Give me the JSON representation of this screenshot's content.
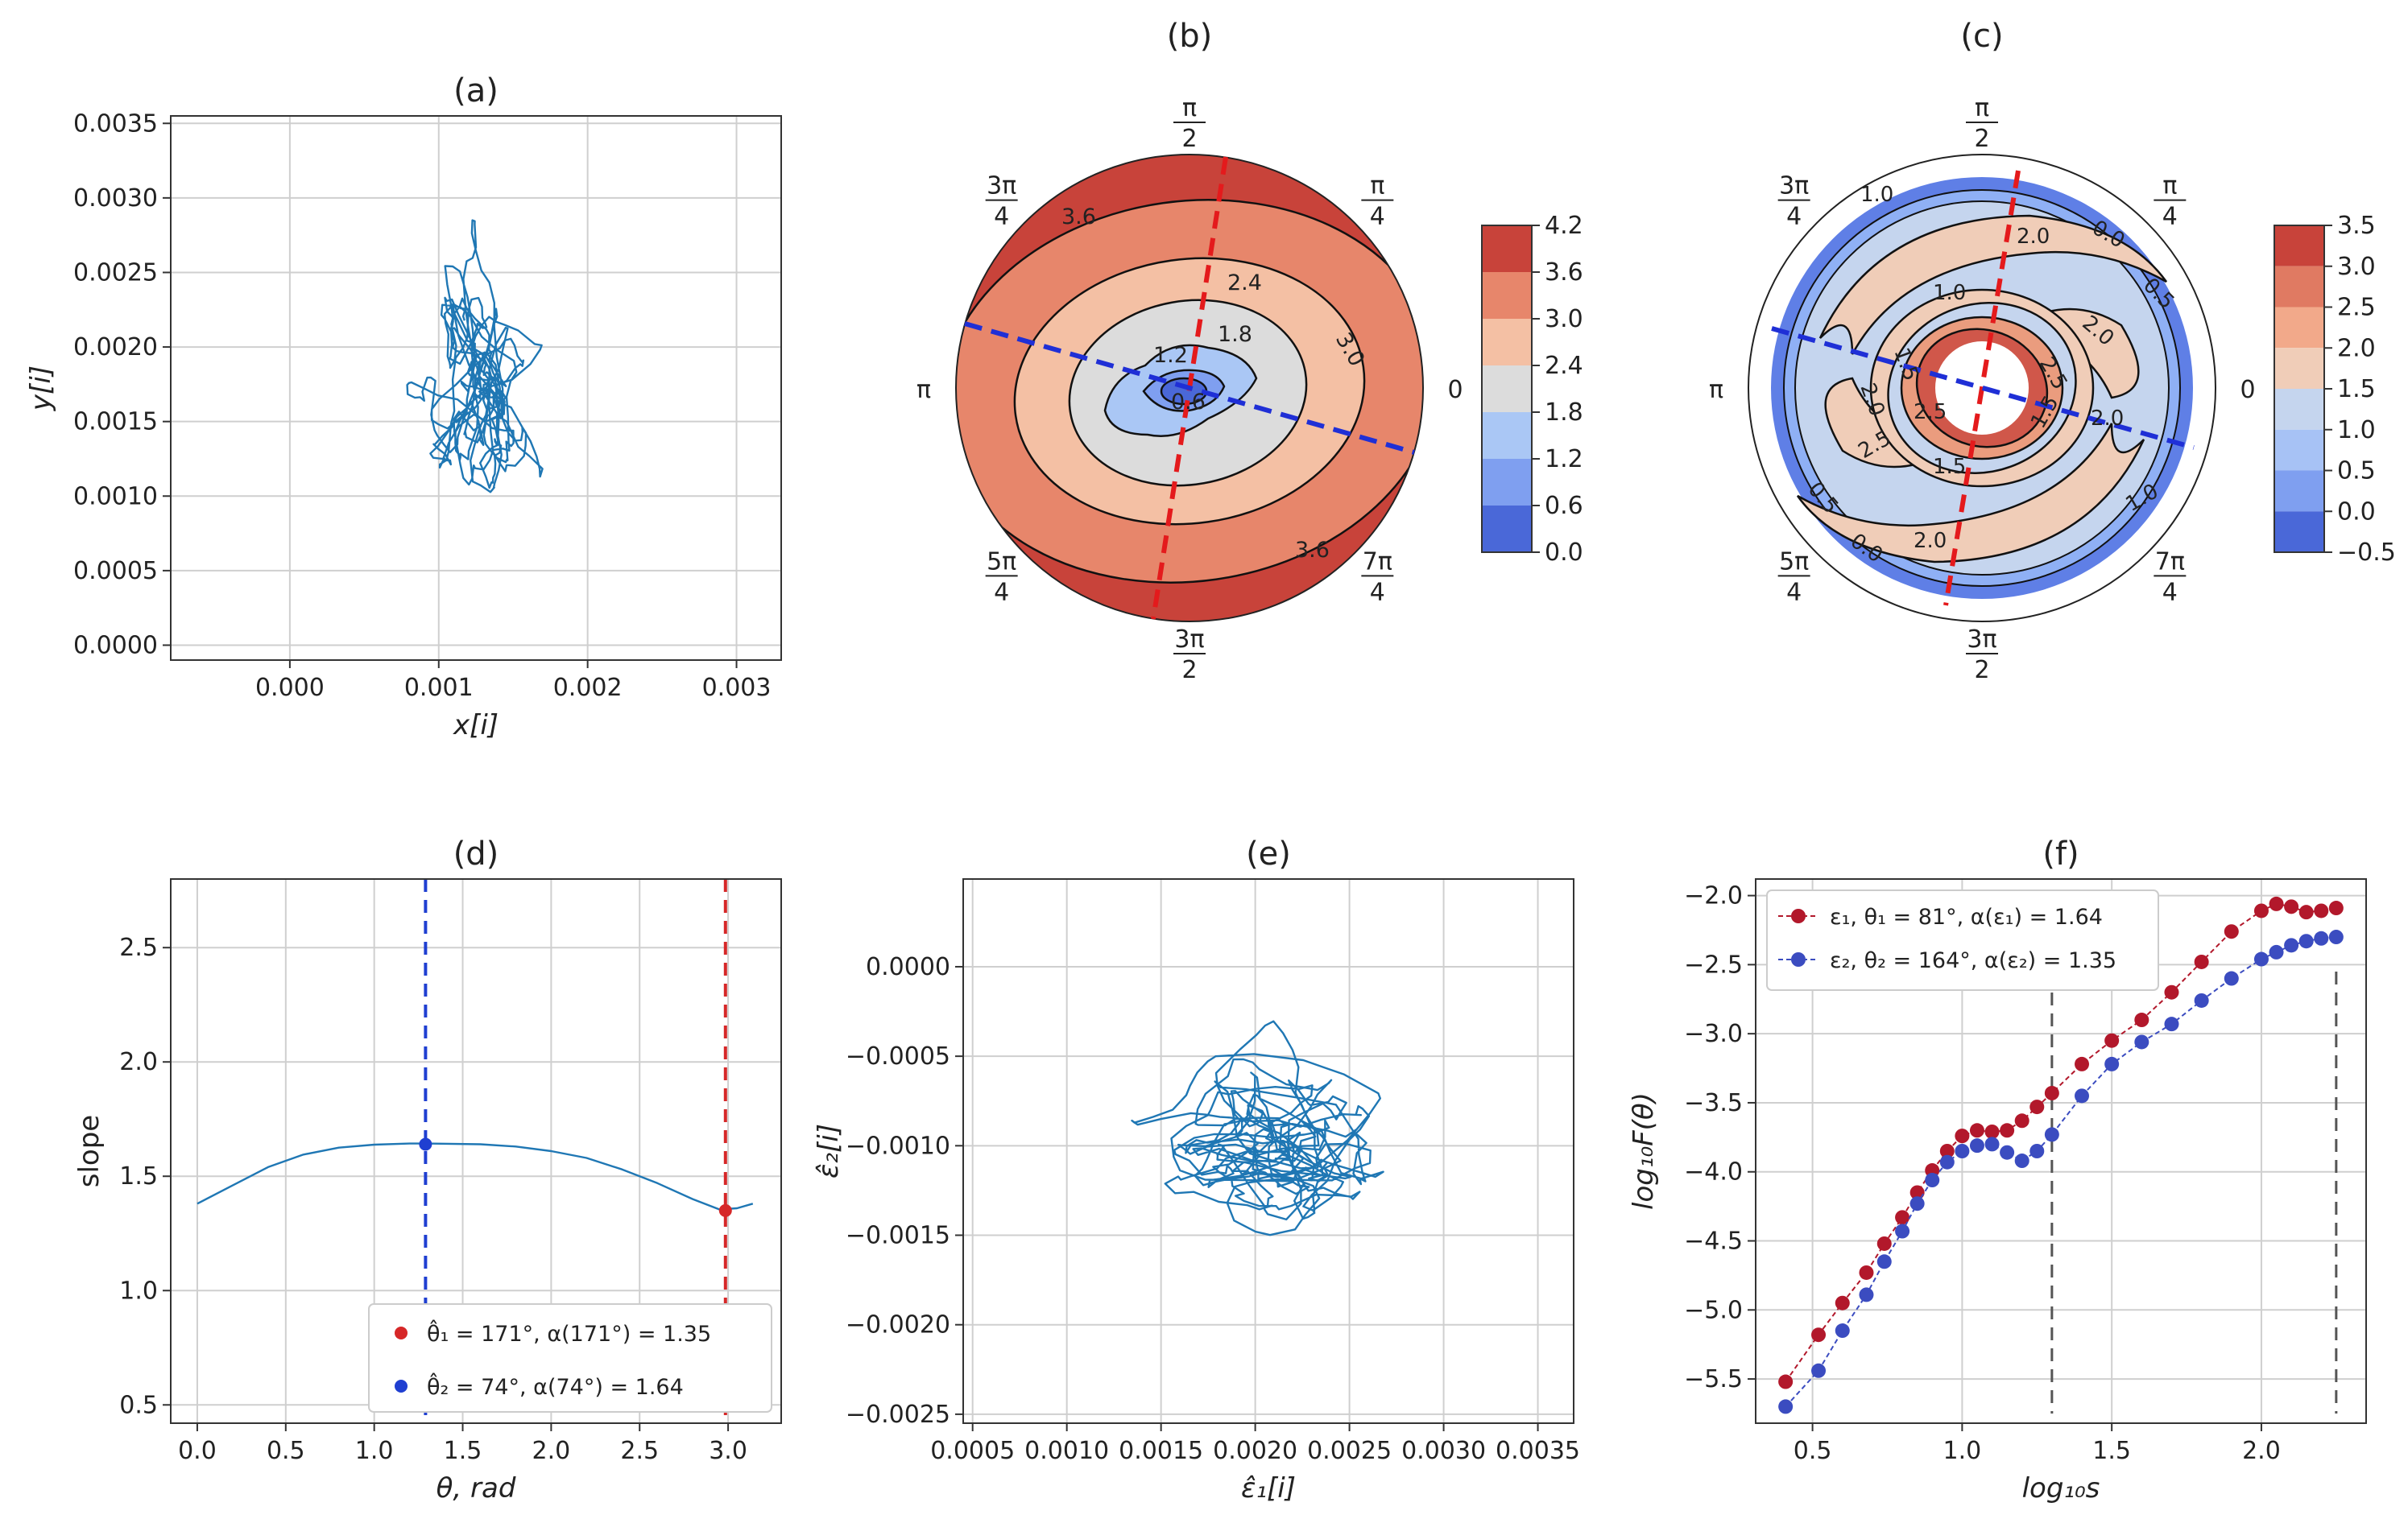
{
  "chart_data": [
    {
      "id": "a",
      "type": "line",
      "title": "(a)",
      "xlabel": "x[i]",
      "ylabel": "y[i]",
      "xlim": [
        -0.0008,
        0.0033
      ],
      "ylim": [
        -0.0001,
        0.00355
      ],
      "xticks": [
        0.0,
        0.001,
        0.002,
        0.003
      ],
      "xtick_labels": [
        "0.000",
        "0.001",
        "0.002",
        "0.003"
      ],
      "yticks": [
        0.0,
        0.0005,
        0.001,
        0.0015,
        0.002,
        0.0025,
        0.003,
        0.0035
      ],
      "ytick_labels": [
        "0.0000",
        "0.0005",
        "0.0010",
        "0.0015",
        "0.0020",
        "0.0025",
        "0.0030",
        "0.0035"
      ],
      "trace_center": [
        0.00125,
        0.0018
      ],
      "trace_spread": [
        0.00022,
        0.00045
      ],
      "trace_points": 460,
      "color": "#1f77b4"
    },
    {
      "id": "b",
      "type": "polar_contour",
      "title": "(b)",
      "angle_labels": [
        "π/2",
        "3π/4",
        "π",
        "5π/4",
        "3π/2",
        "7π/4",
        "0",
        "π/4"
      ],
      "levels": [
        0.0,
        0.6,
        1.2,
        1.8,
        2.4,
        3.0,
        3.6,
        4.2
      ],
      "colorbar_ticks": [
        "4.2",
        "3.6",
        "3.0",
        "2.4",
        "1.8",
        "1.2",
        "0.6",
        "0.0"
      ],
      "contour_labels": [
        "3.6",
        "2.4",
        "3.0",
        "1.8",
        "1.2",
        "0.6",
        "3.6"
      ],
      "red_line_angle_deg": 81,
      "blue_line_angle_deg": 164
    },
    {
      "id": "c",
      "type": "polar_contour",
      "title": "(c)",
      "angle_labels": [
        "π/2",
        "3π/4",
        "π",
        "5π/4",
        "3π/2",
        "7π/4",
        "0",
        "π/4"
      ],
      "levels": [
        -0.5,
        0.0,
        0.5,
        1.0,
        1.5,
        2.0,
        2.5,
        3.0,
        3.5
      ],
      "colorbar_ticks": [
        "3.5",
        "3.0",
        "2.5",
        "2.0",
        "1.5",
        "1.0",
        "0.5",
        "0.0",
        "−0.5"
      ],
      "contour_labels": [
        "1.0",
        "2.0",
        "0.0",
        "0.5",
        "1.0",
        "2.0",
        "1.5",
        "2.5",
        "2.0",
        "2.5",
        "1.5",
        "2.0",
        "1.5",
        "1.0",
        "2.0",
        "0.5",
        "0.0",
        "2.5"
      ],
      "red_line_angle_deg": 81,
      "blue_line_angle_deg": 164
    },
    {
      "id": "d",
      "type": "line",
      "title": "(d)",
      "xlabel": "θ, rad",
      "ylabel": "slope",
      "xlim": [
        -0.15,
        3.3
      ],
      "ylim": [
        0.42,
        2.8
      ],
      "xticks": [
        0.0,
        0.5,
        1.0,
        1.5,
        2.0,
        2.5,
        3.0
      ],
      "xtick_labels": [
        "0.0",
        "0.5",
        "1.0",
        "1.5",
        "2.0",
        "2.5",
        "3.0"
      ],
      "yticks": [
        0.5,
        1.0,
        1.5,
        2.0,
        2.5
      ],
      "ytick_labels": [
        "0.5",
        "1.0",
        "1.5",
        "2.0",
        "2.5"
      ],
      "x": [
        0.0,
        0.2,
        0.4,
        0.6,
        0.8,
        1.0,
        1.2,
        1.3,
        1.6,
        1.8,
        2.0,
        2.2,
        2.4,
        2.6,
        2.8,
        2.95,
        3.05,
        3.14
      ],
      "y": [
        1.38,
        1.46,
        1.54,
        1.595,
        1.625,
        1.638,
        1.643,
        1.643,
        1.64,
        1.63,
        1.61,
        1.58,
        1.53,
        1.47,
        1.4,
        1.355,
        1.36,
        1.38
      ],
      "markers": [
        {
          "x": 2.985,
          "y": 1.35,
          "color": "#d62728",
          "label": "θ̂₁ = 171°, α(171°) = 1.35"
        },
        {
          "x": 1.29,
          "y": 1.64,
          "color": "#1f3fd1",
          "label": "θ̂₂ = 74°, α(74°) = 1.64"
        }
      ],
      "vlines": [
        {
          "x": 1.29,
          "color": "#1f3fd1"
        },
        {
          "x": 2.985,
          "color": "#d62728"
        }
      ]
    },
    {
      "id": "e",
      "type": "line",
      "title": "(e)",
      "xlabel": "ε̂₁[i]",
      "ylabel": "ε̂₂[i]",
      "xlim": [
        0.00045,
        0.00369
      ],
      "ylim": [
        -0.00255,
        0.00049
      ],
      "xticks": [
        0.0005,
        0.001,
        0.0015,
        0.002,
        0.0025,
        0.003,
        0.0035
      ],
      "xtick_labels": [
        "0.0005",
        "0.0010",
        "0.0015",
        "0.0020",
        "0.0025",
        "0.0030",
        "0.0035"
      ],
      "yticks": [
        0.0,
        -0.0005,
        -0.001,
        -0.0015,
        -0.002,
        -0.0025
      ],
      "ytick_labels": [
        "0.0000",
        "−0.0005",
        "−0.0010",
        "−0.0015",
        "−0.0020",
        "−0.0025"
      ],
      "trace_center": [
        0.0021,
        -0.00105
      ],
      "trace_spread": [
        0.00045,
        0.0003
      ],
      "trace_points": 460,
      "color": "#1f77b4"
    },
    {
      "id": "f",
      "type": "scatter",
      "title": "(f)",
      "xlabel": "log₁₀s",
      "ylabel": "log₁₀F(θ)",
      "xlim": [
        0.31,
        2.35
      ],
      "ylim": [
        -5.82,
        -1.88
      ],
      "xticks": [
        0.5,
        1.0,
        1.5,
        2.0
      ],
      "xtick_labels": [
        "0.5",
        "1.0",
        "1.5",
        "2.0"
      ],
      "yticks": [
        -2.0,
        -2.5,
        -3.0,
        -3.5,
        -4.0,
        -4.5,
        -5.0,
        -5.5
      ],
      "ytick_labels": [
        "−2.0",
        "−2.5",
        "−3.0",
        "−3.5",
        "−4.0",
        "−4.5",
        "−5.0",
        "−5.5"
      ],
      "vlines_gray": [
        1.3,
        2.25
      ],
      "series": [
        {
          "name": "ε₁, θ₁ = 81°, α(ε₁) = 1.64",
          "color": "#b2182b",
          "x": [
            0.41,
            0.52,
            0.6,
            0.68,
            0.74,
            0.8,
            0.85,
            0.9,
            0.95,
            1.0,
            1.05,
            1.1,
            1.15,
            1.2,
            1.25,
            1.3,
            1.4,
            1.5,
            1.6,
            1.7,
            1.8,
            1.9,
            2.0,
            2.05,
            2.1,
            2.15,
            2.2,
            2.25
          ],
          "y": [
            -5.52,
            -5.18,
            -4.95,
            -4.73,
            -4.52,
            -4.33,
            -4.15,
            -3.99,
            -3.85,
            -3.74,
            -3.7,
            -3.71,
            -3.7,
            -3.63,
            -3.53,
            -3.43,
            -3.22,
            -3.05,
            -2.9,
            -2.7,
            -2.48,
            -2.26,
            -2.11,
            -2.06,
            -2.08,
            -2.12,
            -2.11,
            -2.09
          ]
        },
        {
          "name": "ε₂, θ₂ = 164°, α(ε₂) = 1.35",
          "color": "#3b4cc0",
          "x": [
            0.41,
            0.52,
            0.6,
            0.68,
            0.74,
            0.8,
            0.85,
            0.9,
            0.95,
            1.0,
            1.05,
            1.1,
            1.15,
            1.2,
            1.25,
            1.3,
            1.4,
            1.5,
            1.6,
            1.7,
            1.8,
            1.9,
            2.0,
            2.05,
            2.1,
            2.15,
            2.2,
            2.25
          ],
          "y": [
            -5.7,
            -5.44,
            -5.15,
            -4.89,
            -4.65,
            -4.43,
            -4.23,
            -4.06,
            -3.93,
            -3.85,
            -3.81,
            -3.8,
            -3.86,
            -3.92,
            -3.85,
            -3.73,
            -3.45,
            -3.22,
            -3.06,
            -2.93,
            -2.76,
            -2.6,
            -2.46,
            -2.41,
            -2.36,
            -2.33,
            -2.31,
            -2.3
          ]
        }
      ]
    }
  ]
}
